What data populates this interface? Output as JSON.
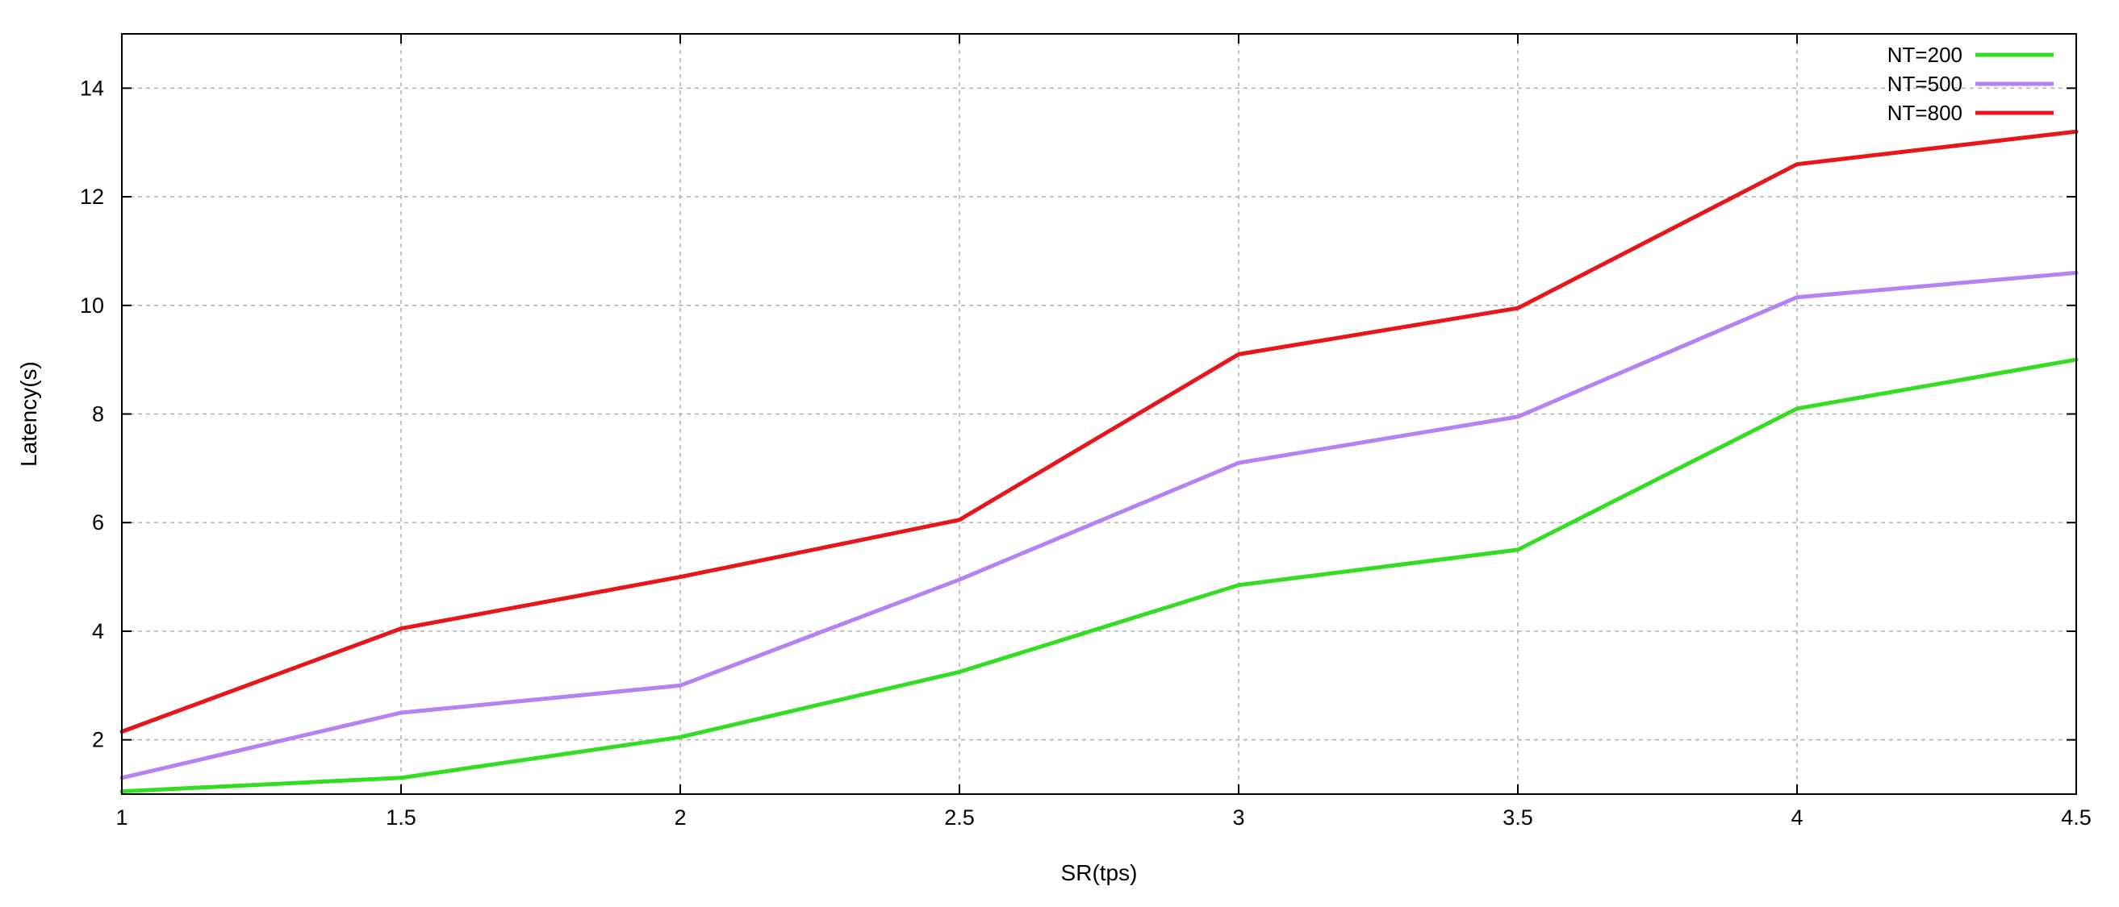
{
  "chart_data": {
    "type": "line",
    "title": "",
    "xlabel": "SR(tps)",
    "ylabel": "Latency(s)",
    "xlim": [
      1,
      4.5
    ],
    "ylim": [
      1,
      15
    ],
    "x_ticks": [
      1,
      1.5,
      2,
      2.5,
      3,
      3.5,
      4,
      4.5
    ],
    "x_tick_labels": [
      "1",
      "1.5",
      "2",
      "2.5",
      "3",
      "3.5",
      "4",
      "4.5"
    ],
    "y_ticks": [
      2,
      4,
      6,
      8,
      10,
      12,
      14
    ],
    "y_tick_labels": [
      "2",
      "4",
      "6",
      "8",
      "10",
      "12",
      "14"
    ],
    "grid": true,
    "legend_position": "top-right",
    "x": [
      1,
      1.5,
      2,
      2.5,
      3,
      3.5,
      4,
      4.5
    ],
    "series": [
      {
        "name": "NT=200",
        "color": "#33dd22",
        "values": [
          1.05,
          1.3,
          2.05,
          3.25,
          4.85,
          5.5,
          8.1,
          9.0
        ]
      },
      {
        "name": "NT=500",
        "color": "#b482f2",
        "values": [
          1.3,
          2.5,
          3.0,
          4.95,
          7.1,
          7.95,
          10.15,
          10.6
        ]
      },
      {
        "name": "NT=800",
        "color": "#e8151b",
        "values": [
          2.15,
          4.05,
          5.0,
          6.05,
          9.1,
          9.95,
          12.6,
          13.2
        ]
      }
    ]
  }
}
